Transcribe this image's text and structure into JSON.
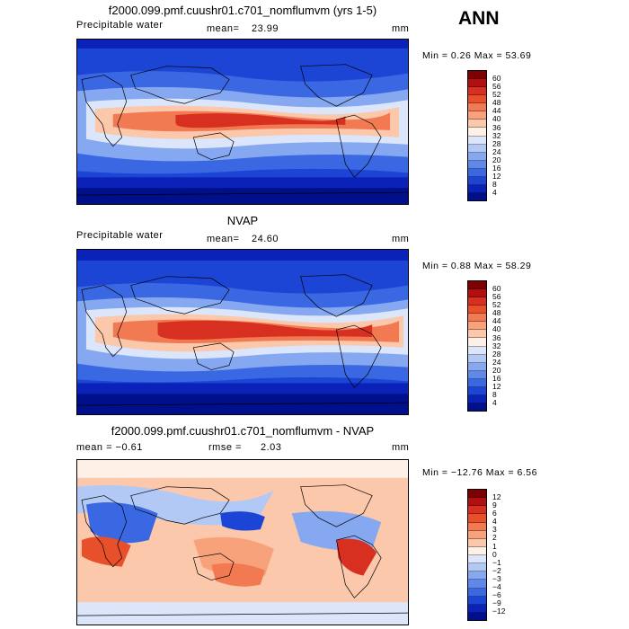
{
  "season": "ANN",
  "panels": [
    {
      "title": "f2000.099.pmf.cuushr01.c701_nomflumvm (yrs 1-5)",
      "left_label": "Precipitable water",
      "mean_label": "mean=",
      "mean_value": "23.99",
      "units": "mm",
      "minmax": "Min =    0.26 Max =   53.69",
      "levels": [
        "60",
        "56",
        "52",
        "48",
        "44",
        "40",
        "36",
        "32",
        "28",
        "24",
        "20",
        "16",
        "12",
        "8",
        "4"
      ],
      "colors": [
        "#7f0000",
        "#b01010",
        "#d73020",
        "#e8502c",
        "#f27a52",
        "#f8a27c",
        "#fbc8ac",
        "#fdf0e6",
        "#dbe6fb",
        "#b2c9f6",
        "#86a8f0",
        "#5f88eb",
        "#3a68e2",
        "#1c45d6",
        "#0a22b8",
        "#00108c"
      ]
    },
    {
      "title": "NVAP",
      "left_label": "Precipitable water",
      "mean_label": "mean=",
      "mean_value": "24.60",
      "units": "mm",
      "minmax": "Min =    0.88 Max =   58.29",
      "levels": [
        "60",
        "56",
        "52",
        "48",
        "44",
        "40",
        "36",
        "32",
        "28",
        "24",
        "20",
        "16",
        "12",
        "8",
        "4"
      ],
      "colors": [
        "#7f0000",
        "#b01010",
        "#d73020",
        "#e8502c",
        "#f27a52",
        "#f8a27c",
        "#fbc8ac",
        "#fdf0e6",
        "#dbe6fb",
        "#b2c9f6",
        "#86a8f0",
        "#5f88eb",
        "#3a68e2",
        "#1c45d6",
        "#0a22b8",
        "#00108c"
      ]
    },
    {
      "title": "f2000.099.pmf.cuushr01.c701_nomflumvm - NVAP",
      "left_label": "mean =   −0.61",
      "mean_label": "rmse =",
      "mean_value": "2.03",
      "units": "mm",
      "minmax": "Min = −12.76 Max =    6.56",
      "levels": [
        "12",
        "9",
        "6",
        "4",
        "3",
        "2",
        "1",
        "0",
        "−1",
        "−2",
        "−3",
        "−4",
        "−6",
        "−9",
        "−12"
      ],
      "colors": [
        "#7f0000",
        "#b01010",
        "#d73020",
        "#e8502c",
        "#f27a52",
        "#f8a27c",
        "#fbc8ac",
        "#fdf0e6",
        "#dbe6fb",
        "#b2c9f6",
        "#86a8f0",
        "#5f88eb",
        "#3a68e2",
        "#1c45d6",
        "#0a22b8",
        "#00108c"
      ]
    }
  ]
}
